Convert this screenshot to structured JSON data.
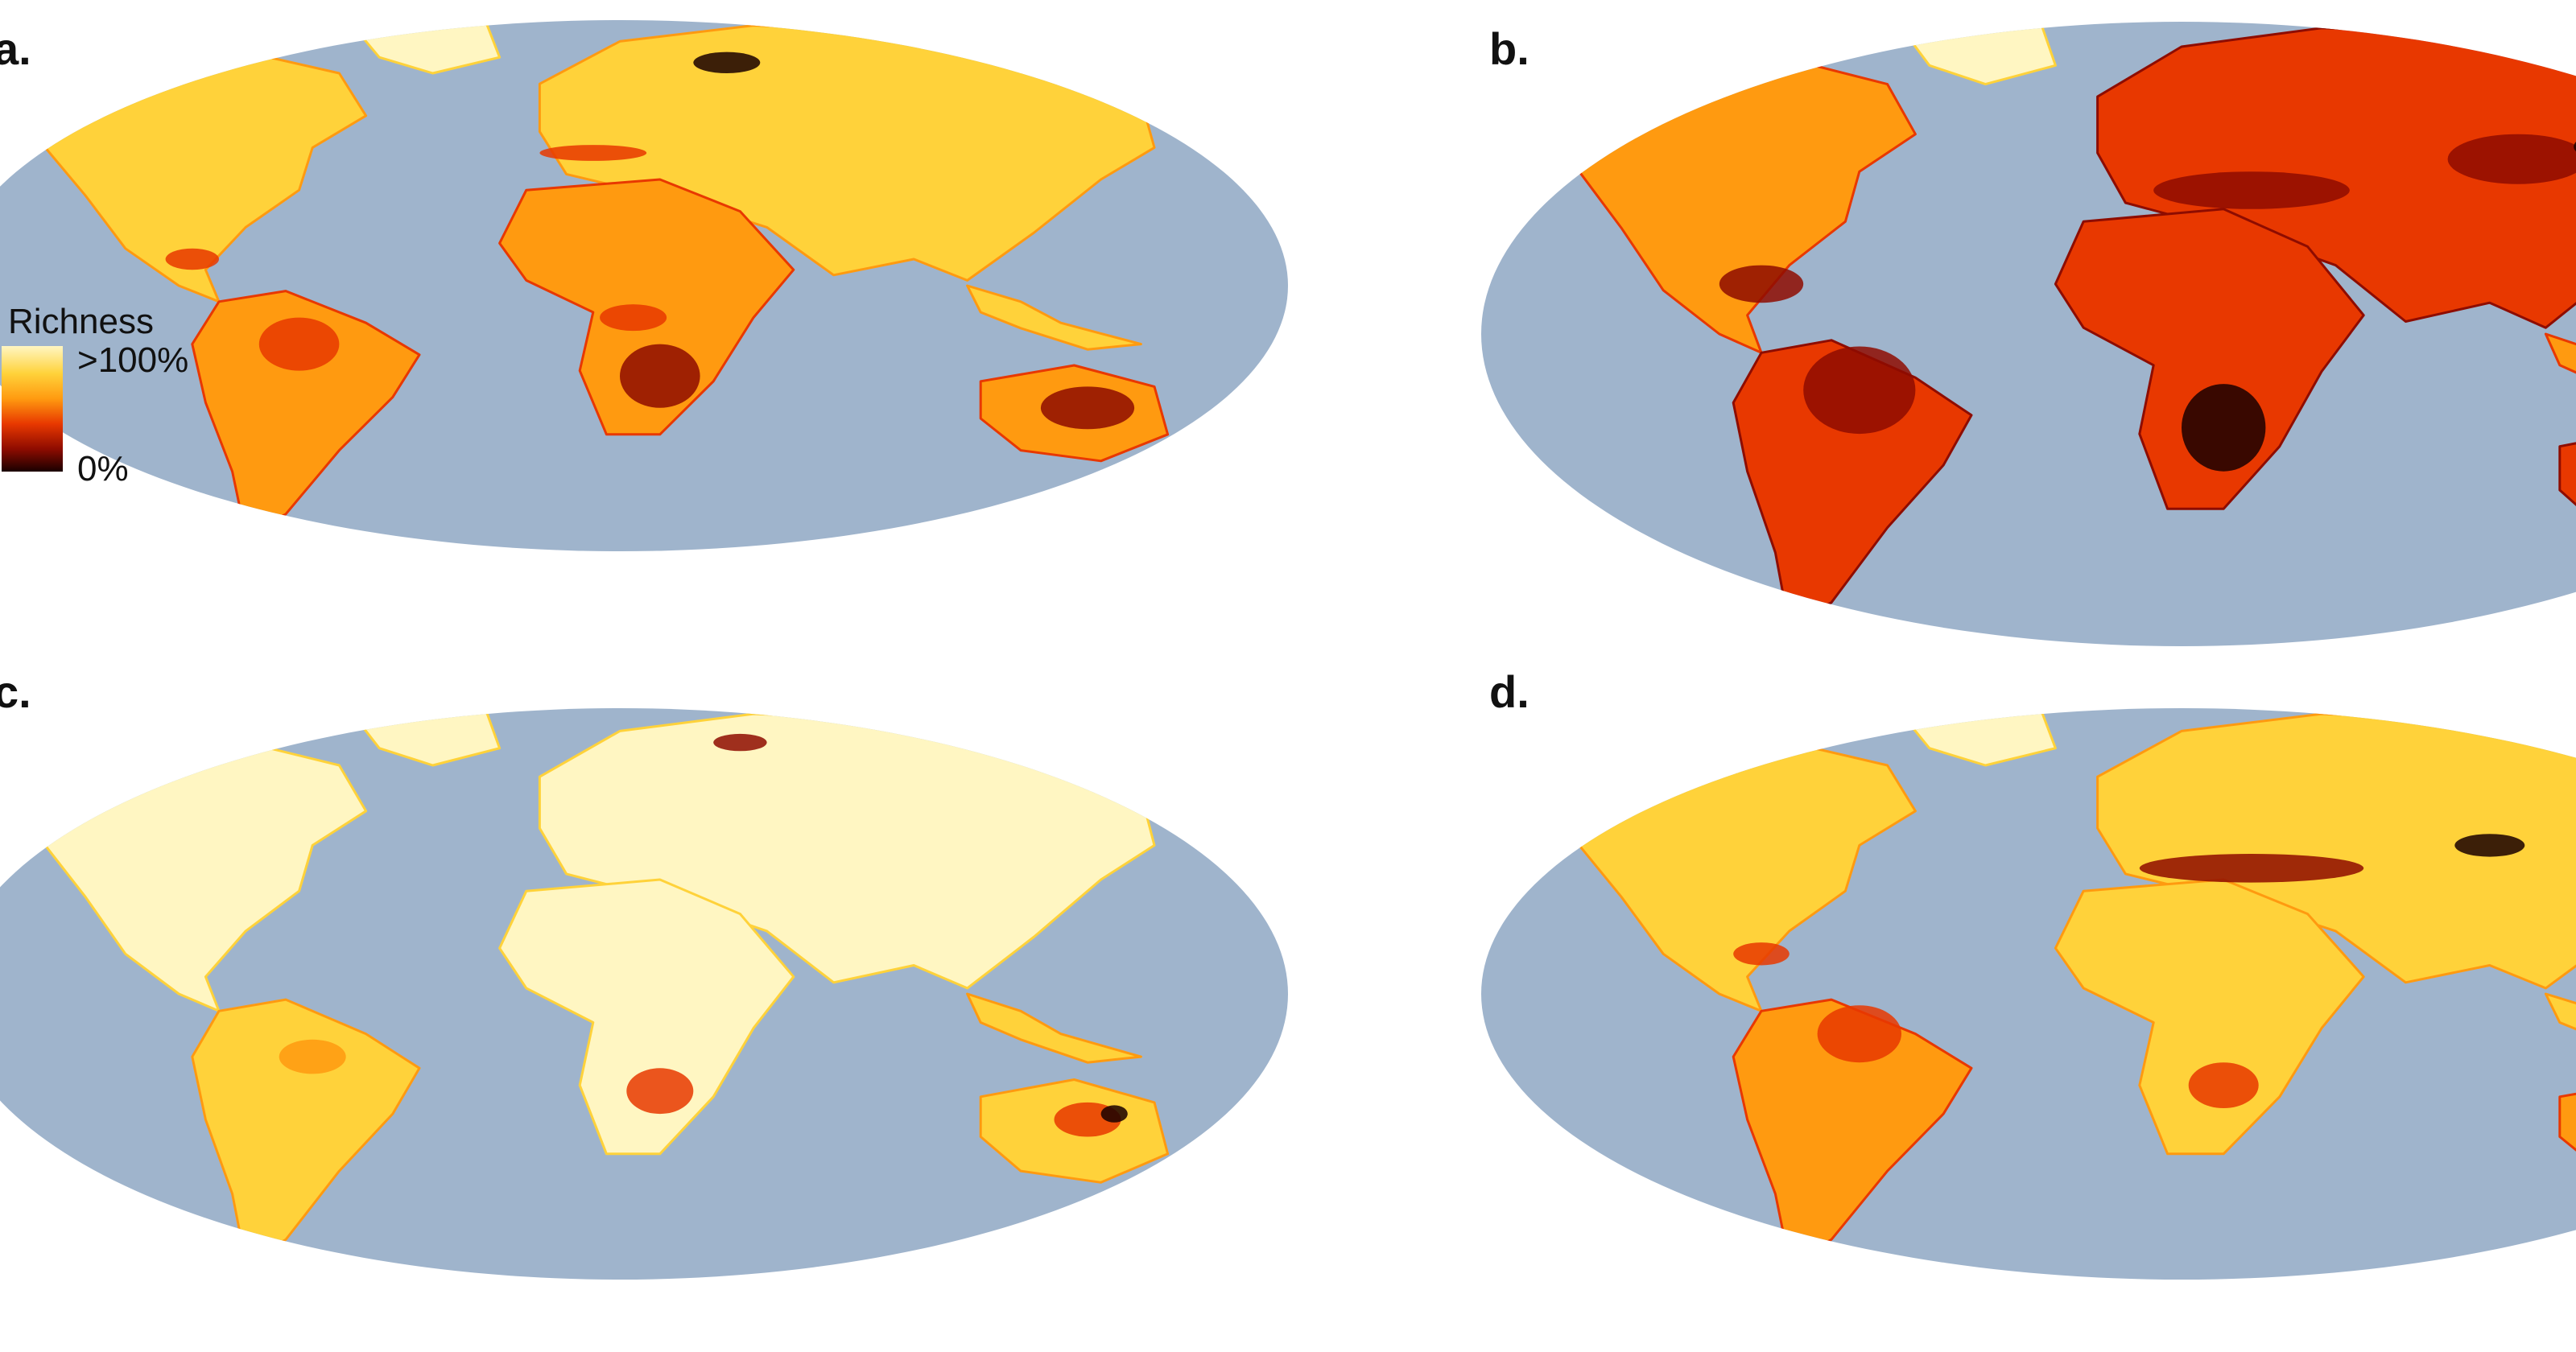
{
  "colors": {
    "ocean": "#9fb4cc",
    "scale": [
      "#fff6c2",
      "#ffd23a",
      "#ff9a10",
      "#e83800",
      "#8e0c00",
      "#1a0000"
    ]
  },
  "legend": {
    "title": "Richness",
    "max_label": ">100%",
    "min_label": "0%"
  },
  "panels": [
    {
      "label": "a."
    },
    {
      "label": "b."
    },
    {
      "label": "c."
    },
    {
      "label": "d."
    }
  ]
}
